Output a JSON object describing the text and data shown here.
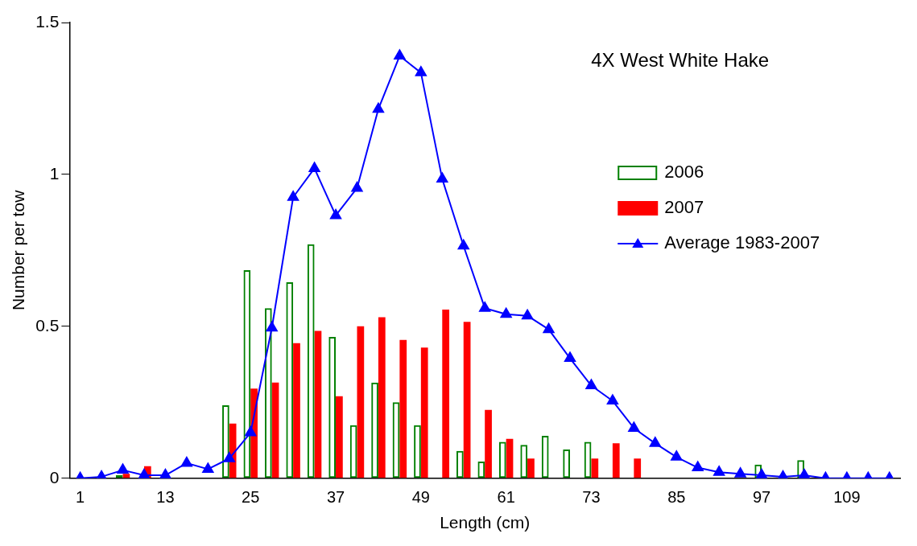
{
  "chart_data": {
    "type": "bar",
    "title": "4X West White Hake",
    "xlabel": "Length (cm)",
    "ylabel": "Number per tow",
    "categories": [
      "1",
      null,
      null,
      null,
      "13",
      null,
      null,
      null,
      "25",
      null,
      null,
      null,
      "37",
      null,
      null,
      null,
      "49",
      null,
      null,
      null,
      "61",
      null,
      null,
      null,
      "73",
      null,
      null,
      null,
      "85",
      null,
      null,
      null,
      "97",
      null,
      null,
      null,
      "109",
      null,
      null
    ],
    "series": [
      {
        "name": "2006",
        "color": "#008000",
        "values": [
          0,
          0,
          0.01,
          0,
          0,
          0,
          0,
          0.24,
          0.685,
          0.56,
          0.645,
          0.77,
          0.465,
          0.175,
          0.315,
          0.25,
          0.175,
          0,
          0.09,
          0.055,
          0.12,
          0.11,
          0.14,
          0.095,
          0.12,
          0,
          0,
          0,
          0,
          0,
          0,
          0,
          0.045,
          0,
          0.06,
          0,
          0,
          0,
          0
        ]
      },
      {
        "name": "2007",
        "color": "#ff0000",
        "values": [
          0,
          0,
          0.015,
          0.04,
          0,
          0,
          0,
          0.18,
          0.295,
          0.315,
          0.445,
          0.485,
          0.27,
          0.5,
          0.53,
          0.455,
          0.43,
          0.555,
          0.515,
          0.225,
          0.13,
          0.065,
          0,
          0,
          0.065,
          0.115,
          0.065,
          0,
          0,
          0,
          0,
          0,
          0,
          0,
          0,
          0,
          0,
          0,
          0
        ]
      },
      {
        "name": "Average 1983-2007",
        "type": "line",
        "color": "#0000ff",
        "marker": "triangle",
        "values": [
          0,
          0.005,
          0.027,
          0.01,
          0.01,
          0.05,
          0.03,
          0.065,
          0.15,
          0.495,
          0.925,
          1.02,
          0.865,
          0.955,
          1.215,
          1.39,
          1.335,
          0.985,
          0.765,
          0.56,
          0.54,
          0.535,
          0.49,
          0.395,
          0.305,
          0.255,
          0.165,
          0.115,
          0.07,
          0.035,
          0.02,
          0.015,
          0.01,
          0.005,
          0.01,
          0,
          0,
          0,
          0
        ]
      }
    ],
    "ylim": [
      0,
      1.5
    ],
    "yticks": [
      0,
      0.5,
      1,
      1.5
    ],
    "grid": false,
    "legend": "right"
  }
}
